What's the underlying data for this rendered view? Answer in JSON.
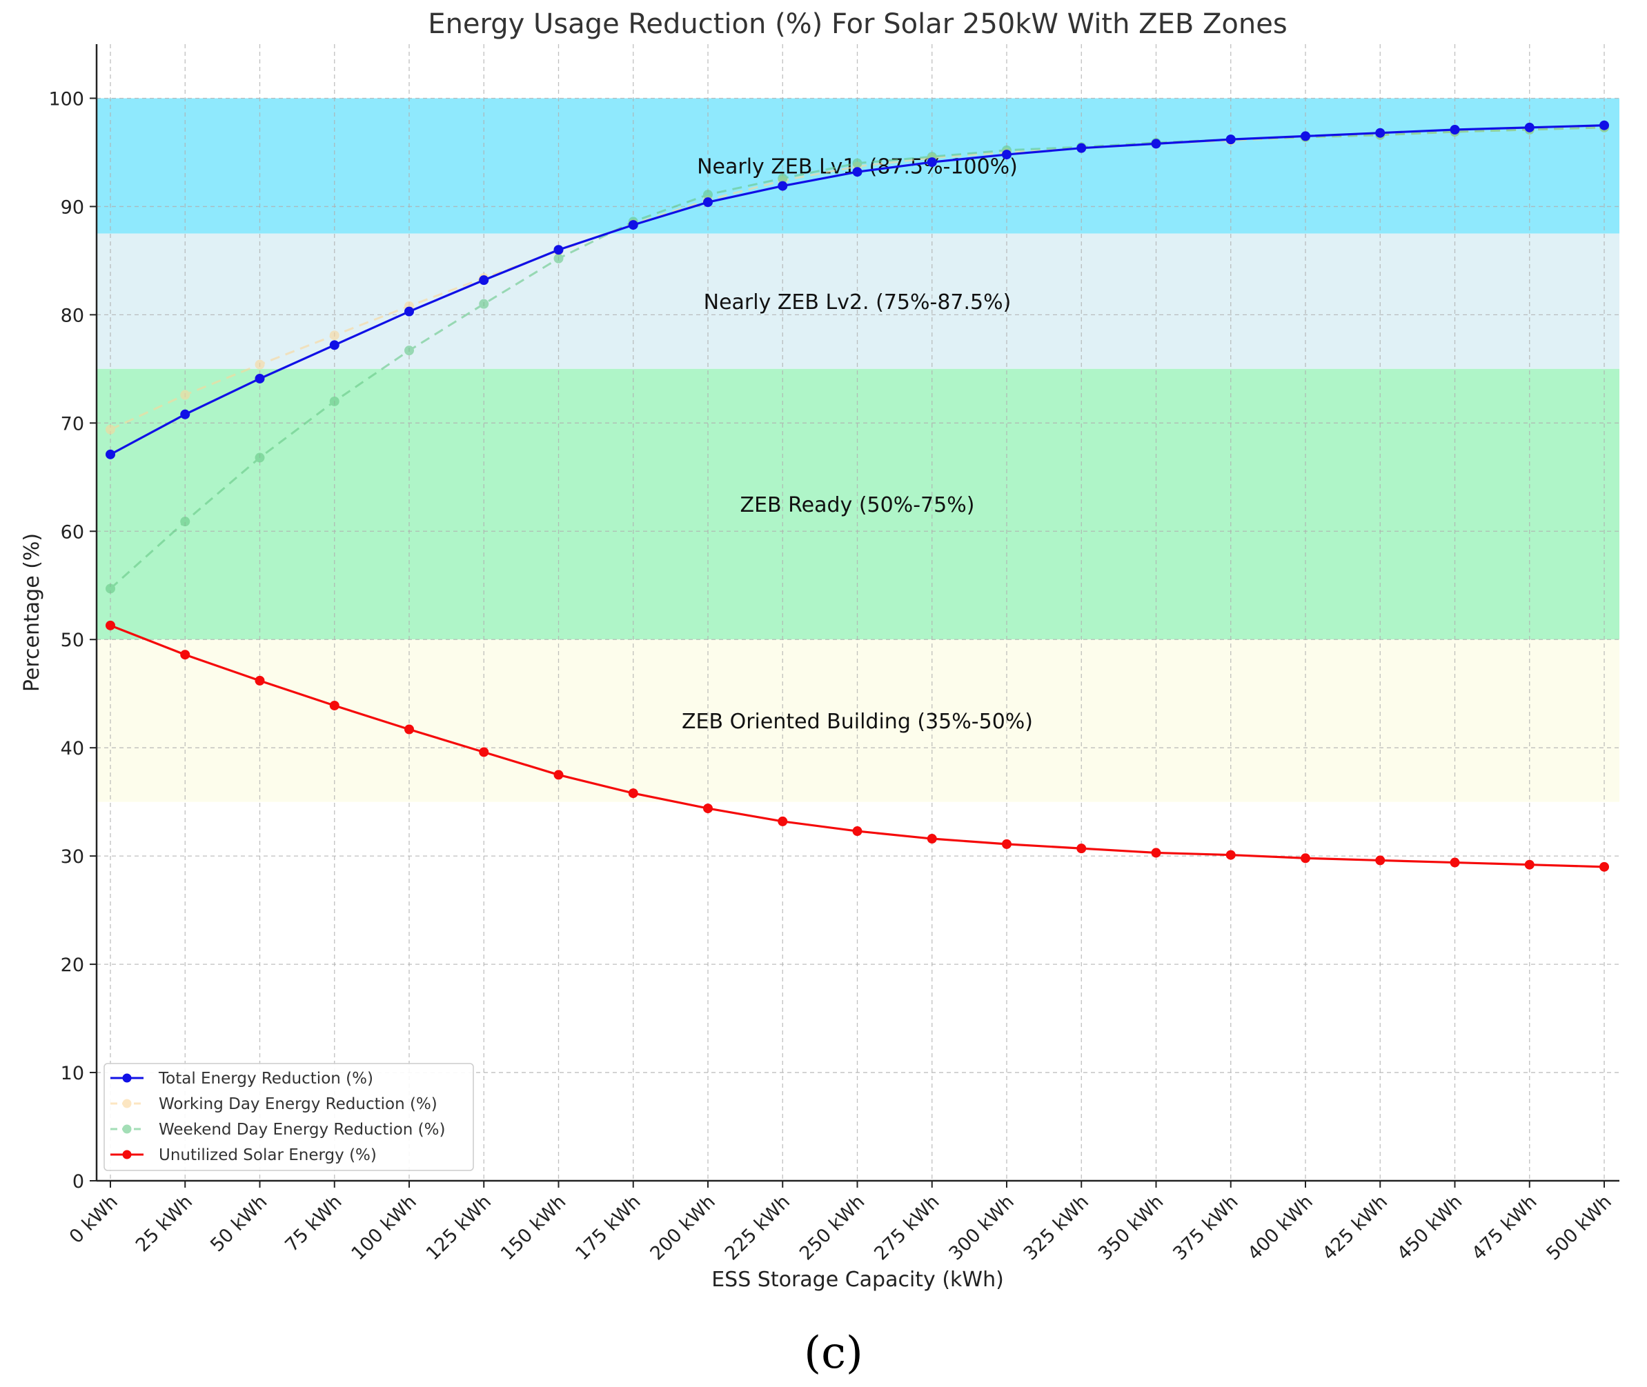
{
  "chart_data": {
    "type": "line",
    "title": "Energy Usage Reduction (%) For Solar 250kW With ZEB Zones",
    "xlabel": "ESS Storage Capacity (kWh)",
    "ylabel": "Percentage (%)",
    "ylim": [
      0,
      105
    ],
    "yticks": [
      0,
      10,
      20,
      30,
      40,
      50,
      60,
      70,
      80,
      90,
      100
    ],
    "grid": true,
    "categories": [
      "0 kWh",
      "25 kWh",
      "50 kWh",
      "75 kWh",
      "100 kWh",
      "125 kWh",
      "150 kWh",
      "175 kWh",
      "200 kWh",
      "225 kWh",
      "250 kWh",
      "275 kWh",
      "300 kWh",
      "325 kWh",
      "350 kWh",
      "375 kWh",
      "400 kWh",
      "425 kWh",
      "450 kWh",
      "475 kWh",
      "500 kWh"
    ],
    "zones": [
      {
        "label": "Nearly ZEB Lv1. (87.5%-100%)",
        "from": 87.5,
        "to": 100,
        "color": "#8fe9fd"
      },
      {
        "label": "Nearly ZEB Lv2. (75%-87.5%)",
        "from": 75,
        "to": 87.5,
        "color": "#e0f1f6"
      },
      {
        "label": "ZEB Ready (50%-75%)",
        "from": 50,
        "to": 75,
        "color": "#aff5c8"
      },
      {
        "label": "ZEB Oriented Building (35%-50%)",
        "from": 35,
        "to": 50,
        "color": "#fdfdec"
      }
    ],
    "series": [
      {
        "name": "Working Day Energy Reduction (%)",
        "color": "#fbd79a",
        "style": "dashed",
        "opacity": 0.6,
        "values": [
          69.4,
          72.6,
          75.4,
          78.1,
          80.8,
          83.4,
          85.9,
          88.4,
          90.6,
          92.4,
          93.7,
          94.5,
          95.0,
          95.4,
          95.8,
          96.1,
          96.4,
          96.6,
          96.9,
          97.1,
          97.3
        ]
      },
      {
        "name": "Weekend Day Energy Reduction (%)",
        "color": "#67c987",
        "style": "dashed",
        "opacity": 0.6,
        "values": [
          54.7,
          60.9,
          66.8,
          72.0,
          76.7,
          81.0,
          85.2,
          88.6,
          91.1,
          92.6,
          94.0,
          94.6,
          95.2,
          95.5,
          95.9,
          96.2,
          96.4,
          96.6,
          96.9,
          97.1,
          97.3
        ]
      },
      {
        "name": "Total Energy Reduction (%)",
        "color": "#1010e6",
        "style": "solid",
        "opacity": 1,
        "values": [
          67.1,
          70.8,
          74.1,
          77.2,
          80.3,
          83.2,
          86.0,
          88.3,
          90.4,
          91.9,
          93.2,
          94.1,
          94.8,
          95.4,
          95.8,
          96.2,
          96.5,
          96.8,
          97.1,
          97.3,
          97.5
        ]
      },
      {
        "name": "Unutilized Solar Energy (%)",
        "color": "#f50a0a",
        "style": "solid",
        "opacity": 1,
        "values": [
          51.3,
          48.6,
          46.2,
          43.9,
          41.7,
          39.6,
          37.5,
          35.8,
          34.4,
          33.2,
          32.3,
          31.6,
          31.1,
          30.7,
          30.3,
          30.1,
          29.8,
          29.6,
          29.4,
          29.2,
          29.0
        ]
      }
    ],
    "legend_order": [
      "Total Energy Reduction (%)",
      "Working Day Energy Reduction (%)",
      "Weekend Day Energy Reduction (%)",
      "Unutilized Solar Energy (%)"
    ],
    "legend_position": "lower-left"
  },
  "caption": "(c)"
}
